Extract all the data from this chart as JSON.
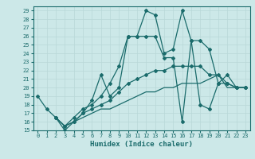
{
  "xlabel": "Humidex (Indice chaleur)",
  "bg_color": "#cce8e8",
  "grid_color": "#b8d8d8",
  "line_color": "#1a6b6b",
  "xlim": [
    -0.5,
    23.5
  ],
  "ylim": [
    15,
    29.5
  ],
  "xticks": [
    0,
    1,
    2,
    3,
    4,
    5,
    6,
    7,
    8,
    9,
    10,
    11,
    12,
    13,
    14,
    15,
    16,
    17,
    18,
    19,
    20,
    21,
    22,
    23
  ],
  "yticks": [
    15,
    16,
    17,
    18,
    19,
    20,
    21,
    22,
    23,
    24,
    25,
    26,
    27,
    28,
    29
  ],
  "lines": [
    {
      "x": [
        0,
        1,
        2,
        3,
        4,
        5,
        6,
        7,
        8,
        9,
        10,
        11,
        12,
        13,
        14,
        15,
        16,
        17,
        18,
        19,
        20,
        21,
        22,
        23
      ],
      "y": [
        19,
        17.5,
        16.5,
        15.5,
        16.5,
        17.5,
        18.0,
        19.0,
        20.5,
        22.5,
        26.0,
        26.0,
        29.0,
        28.5,
        24.0,
        24.5,
        29.0,
        25.5,
        25.5,
        24.5,
        20.5,
        21.5,
        20.0,
        20.0
      ],
      "marker": "D",
      "markersize": 2.0,
      "linewidth": 0.9
    },
    {
      "x": [
        2,
        3,
        4,
        5,
        6,
        7,
        8,
        9,
        10,
        11,
        12,
        13,
        14,
        15,
        16,
        17,
        18,
        19,
        20,
        21,
        22,
        23
      ],
      "y": [
        16.5,
        15.0,
        16.0,
        17.0,
        18.5,
        21.5,
        19.0,
        20.0,
        26.0,
        26.0,
        26.0,
        26.0,
        23.5,
        23.5,
        16.0,
        25.5,
        18.0,
        17.5,
        20.5,
        20.5,
        20.0,
        20.0
      ],
      "marker": "D",
      "markersize": 2.0,
      "linewidth": 0.9
    },
    {
      "x": [
        2,
        3,
        4,
        5,
        6,
        7,
        8,
        9,
        10,
        11,
        12,
        13,
        14,
        15,
        16,
        17,
        18,
        19,
        20,
        21,
        22,
        23
      ],
      "y": [
        16.5,
        15.5,
        16.0,
        17.0,
        17.5,
        18.0,
        18.5,
        19.5,
        20.5,
        21.0,
        21.5,
        22.0,
        22.0,
        22.5,
        22.5,
        22.5,
        22.5,
        21.5,
        21.5,
        20.5,
        20.0,
        20.0
      ],
      "marker": "D",
      "markersize": 2.0,
      "linewidth": 0.9
    },
    {
      "x": [
        2,
        3,
        4,
        5,
        6,
        7,
        8,
        9,
        10,
        11,
        12,
        13,
        14,
        15,
        16,
        17,
        18,
        19,
        20,
        21,
        22,
        23
      ],
      "y": [
        16.5,
        15.5,
        16.0,
        16.5,
        17.0,
        17.5,
        17.5,
        18.0,
        18.5,
        19.0,
        19.5,
        19.5,
        20.0,
        20.0,
        20.5,
        20.5,
        20.5,
        21.0,
        21.5,
        20.0,
        20.0,
        20.0
      ],
      "marker": null,
      "markersize": 0,
      "linewidth": 0.9
    }
  ]
}
